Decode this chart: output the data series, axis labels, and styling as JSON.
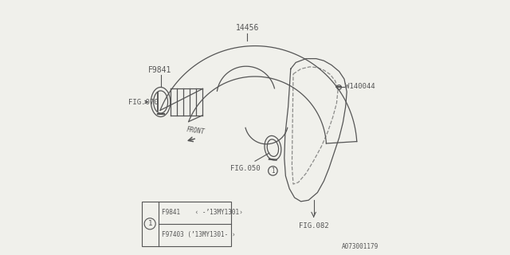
{
  "bg_color": "#f0f0eb",
  "line_color": "#555555",
  "watermark": "A073001179",
  "legend_rows": [
    "F9841    ‹ -’13MY1301›",
    "F97403 (’13MY1301- ›"
  ]
}
